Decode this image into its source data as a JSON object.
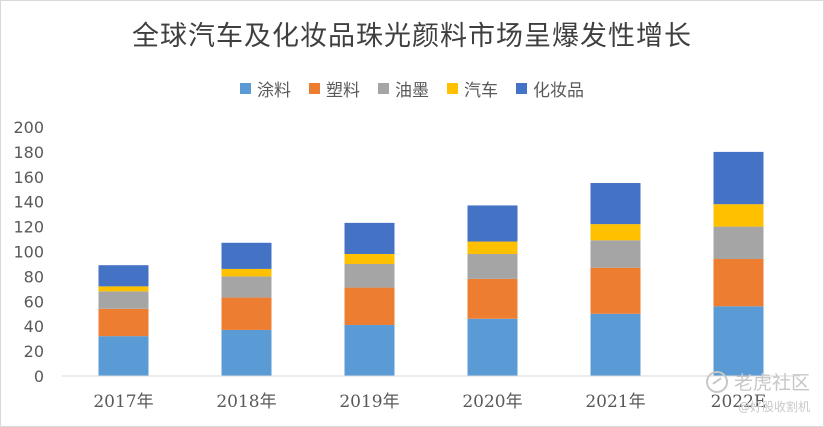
{
  "chart_data": {
    "type": "bar",
    "stacked": true,
    "title": "全球汽车及化妆品珠光颜料市场呈爆发性增长",
    "categories": [
      "2017年",
      "2018年",
      "2019年",
      "2020年",
      "2021年",
      "2022E"
    ],
    "series": [
      {
        "name": "涂料",
        "color": "#5b9bd5",
        "values": [
          32,
          37,
          41,
          46,
          50,
          56
        ]
      },
      {
        "name": "塑料",
        "color": "#ed7d31",
        "values": [
          22,
          26,
          30,
          32,
          37,
          38
        ]
      },
      {
        "name": "油墨",
        "color": "#a5a5a5",
        "values": [
          14,
          17,
          19,
          20,
          22,
          26
        ]
      },
      {
        "name": "汽车",
        "color": "#ffc000",
        "values": [
          4,
          6,
          8,
          10,
          13,
          18
        ]
      },
      {
        "name": "化妆品",
        "color": "#4472c4",
        "values": [
          17,
          21,
          25,
          29,
          33,
          42
        ]
      }
    ],
    "y_ticks": [
      "0",
      "20",
      "40",
      "60",
      "80",
      "100",
      "120",
      "140",
      "160",
      "180",
      "200"
    ],
    "ylim": [
      0,
      200
    ],
    "legend_position": "top",
    "grid": false
  },
  "watermark": {
    "brand": "老虎社区",
    "sub": "@好股收割机"
  }
}
